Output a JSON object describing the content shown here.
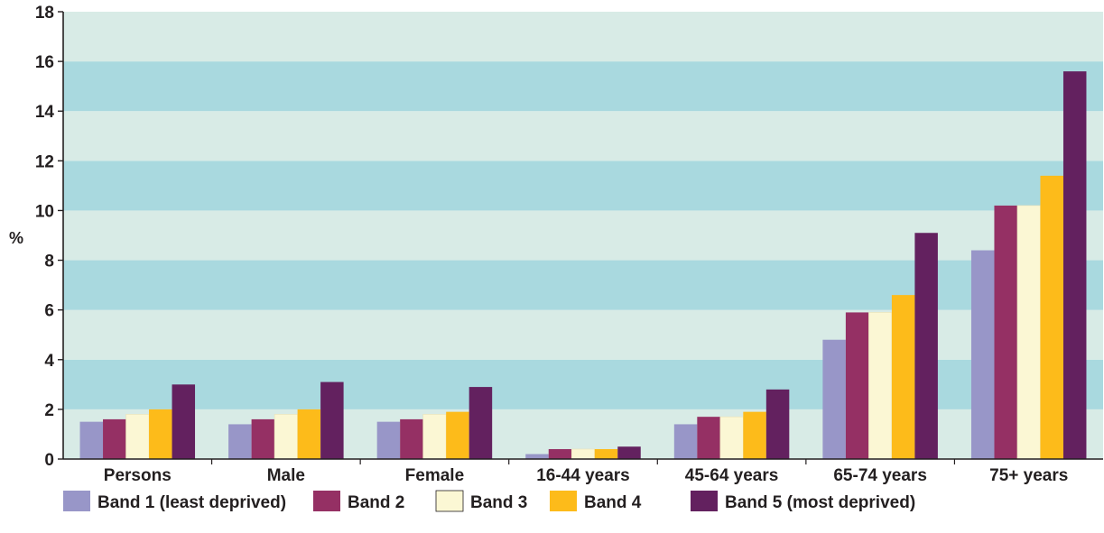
{
  "chart_data": {
    "type": "bar",
    "title": "",
    "xlabel": "",
    "ylabel": "%",
    "ylim": [
      0,
      18
    ],
    "yticks": [
      0,
      2,
      4,
      6,
      8,
      10,
      12,
      14,
      16,
      18
    ],
    "grid": "alternating horizontal bands",
    "band_colors": [
      "#d8ebe6",
      "#a9d9df"
    ],
    "legend_position": "bottom",
    "categories": [
      "Persons",
      "Male",
      "Female",
      "16-44 years",
      "45-64  years",
      "65-74 years",
      "75+ years"
    ],
    "series": [
      {
        "name": "Band 1 (least deprived)",
        "color": "#9896c8",
        "values": [
          1.5,
          1.4,
          1.5,
          0.2,
          1.4,
          4.8,
          8.4
        ]
      },
      {
        "name": "Band 2",
        "color": "#953064",
        "values": [
          1.6,
          1.6,
          1.6,
          0.4,
          1.7,
          5.9,
          10.2
        ]
      },
      {
        "name": "Band 3",
        "color": "#fbf7d4",
        "values": [
          1.8,
          1.8,
          1.8,
          0.4,
          1.7,
          5.9,
          10.2
        ]
      },
      {
        "name": "Band 4",
        "color": "#fdbb1a",
        "values": [
          2.0,
          2.0,
          1.9,
          0.4,
          1.9,
          6.6,
          11.4
        ]
      },
      {
        "name": "Band 5 (most deprived)",
        "color": "#63215f",
        "values": [
          3.0,
          3.1,
          2.9,
          0.5,
          2.8,
          9.1,
          15.6
        ]
      }
    ]
  }
}
